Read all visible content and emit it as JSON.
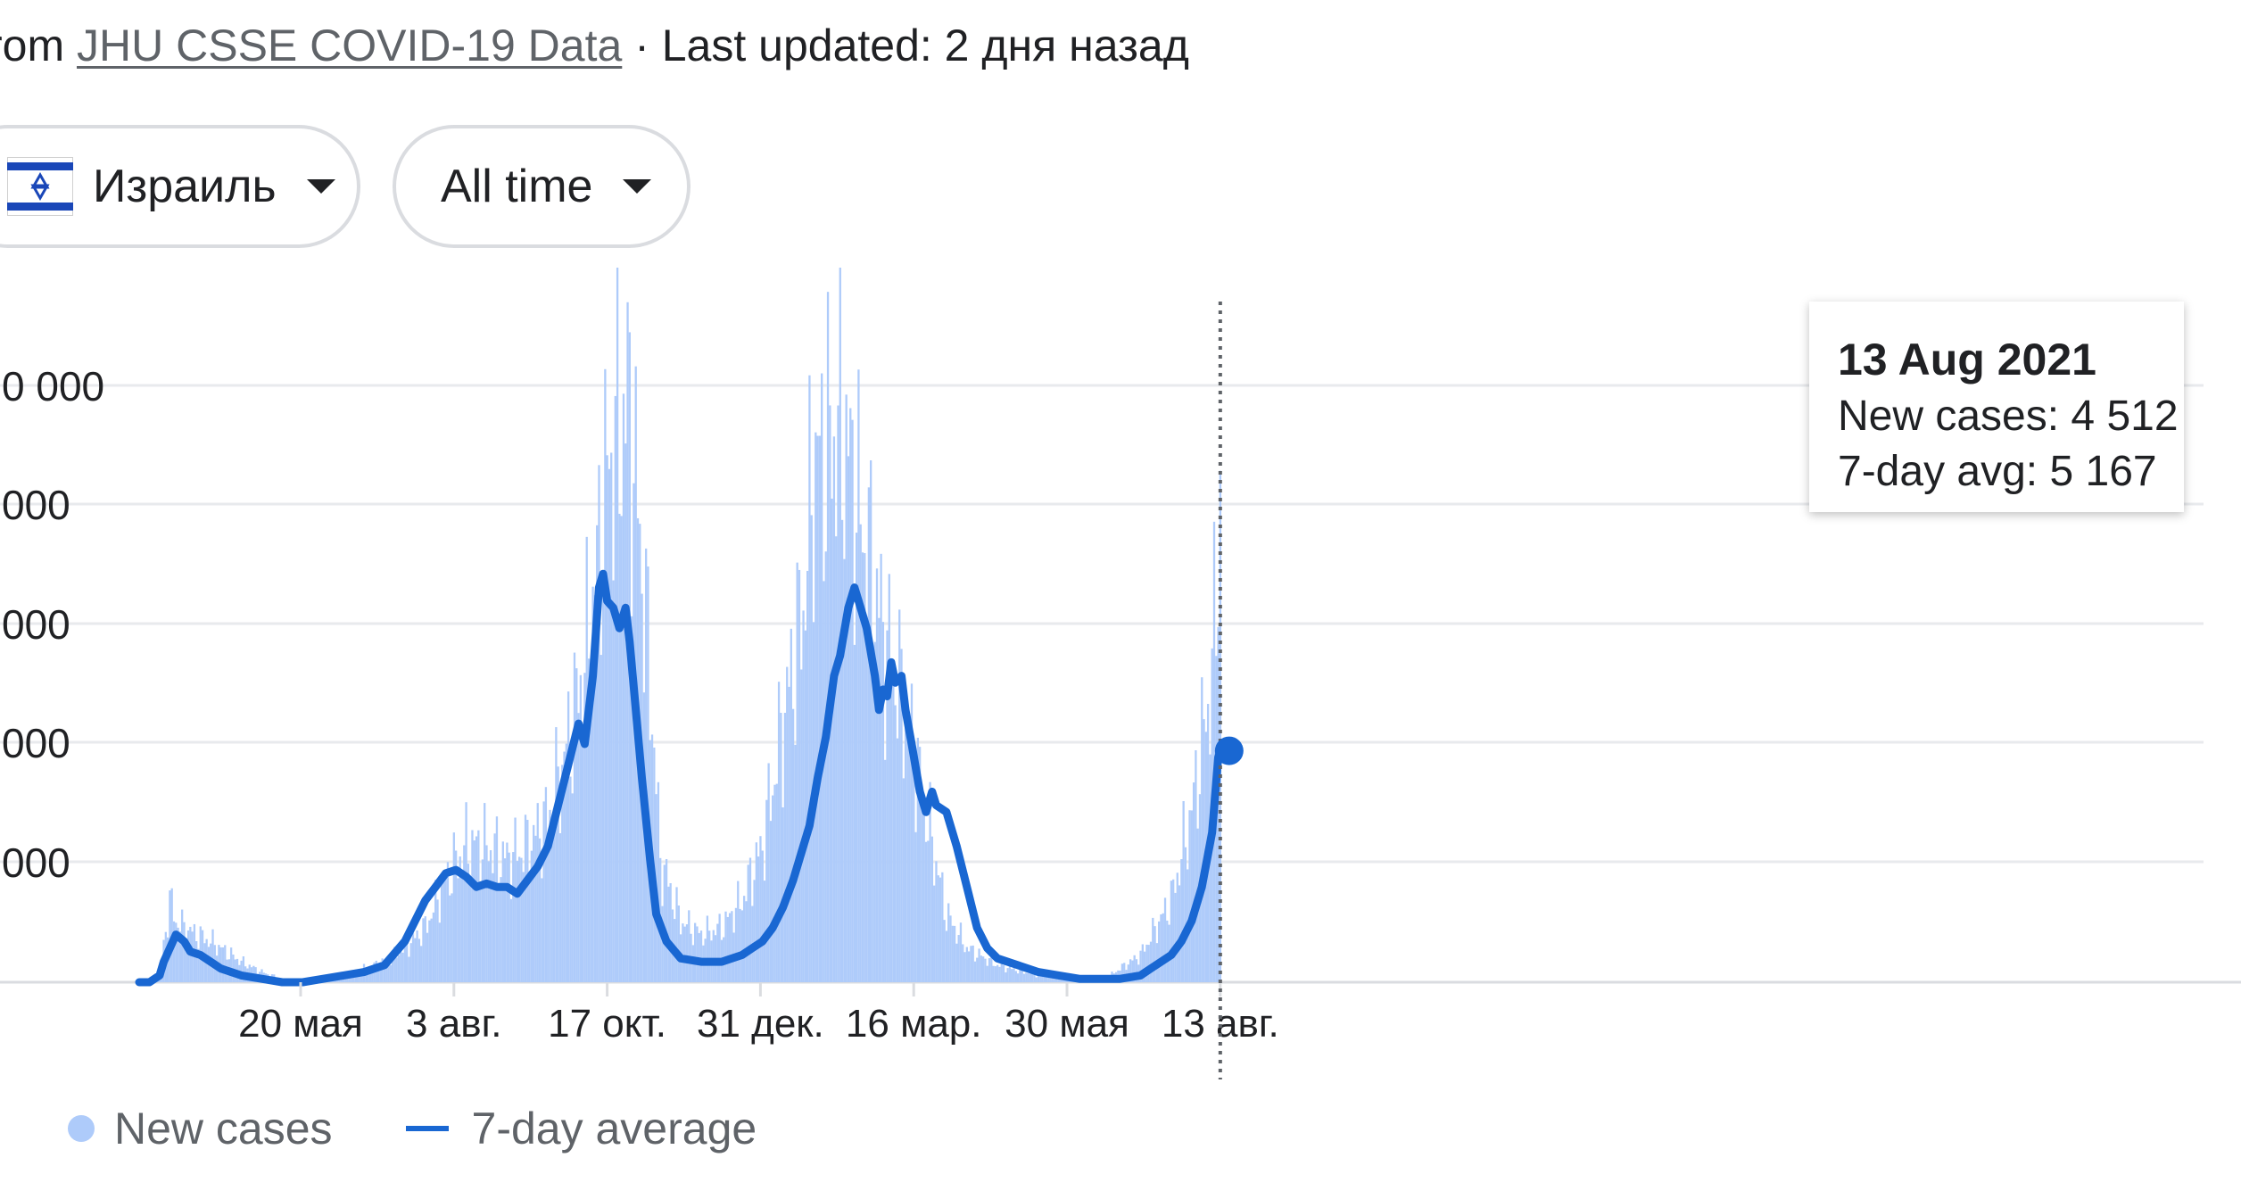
{
  "source": {
    "prefix": "rom",
    "link_text": "JHU CSSE COVID-19 Data",
    "suffix": "· Last updated: 2 дня назад"
  },
  "filters": {
    "country": "Израиль",
    "country_icon": "israel-flag-icon",
    "range": "All time",
    "dropdown_icon": "caret-down-icon"
  },
  "tooltip": {
    "date": "13 Aug 2021",
    "new_cases": "New cases: 4 512",
    "avg": "7-day avg: 5 167"
  },
  "legend": {
    "new_cases": "New cases",
    "avg": "7-day average"
  },
  "colors": {
    "bars": "#aecbfa",
    "line": "#1967d2",
    "grid": "#e8eaed",
    "axis": "#dadce0",
    "text": "#202124"
  },
  "chart_data": {
    "type": "bar",
    "y_tick_labels": [
      "0 000",
      "000",
      "000",
      "000",
      "000"
    ],
    "y_ticks_clipped": true,
    "x_tick_labels": [
      "20 мая",
      "3 авг.",
      "17 окт.",
      "31 дек.",
      "16 мар.",
      "30 мая",
      "13 авг."
    ],
    "x_ticks_days_since_first_point": [
      79,
      154,
      229,
      304,
      379,
      454,
      529
    ],
    "series": [
      {
        "name": "New cases",
        "style": "bars",
        "values_fraction_of_max": [
          [
            0,
            0
          ],
          [
            10,
            0.01
          ],
          [
            15,
            0.12
          ],
          [
            18,
            0.09
          ],
          [
            22,
            0.08
          ],
          [
            28,
            0.07
          ],
          [
            35,
            0.06
          ],
          [
            50,
            0.03
          ],
          [
            60,
            0.015
          ],
          [
            70,
            0.005
          ],
          [
            80,
            0.0
          ],
          [
            100,
            0.005
          ],
          [
            110,
            0.02
          ],
          [
            120,
            0.03
          ],
          [
            130,
            0.05
          ],
          [
            140,
            0.08
          ],
          [
            150,
            0.15
          ],
          [
            160,
            0.2
          ],
          [
            170,
            0.2
          ],
          [
            180,
            0.18
          ],
          [
            190,
            0.2
          ],
          [
            200,
            0.24
          ],
          [
            210,
            0.35
          ],
          [
            220,
            0.5
          ],
          [
            230,
            0.77
          ],
          [
            240,
            0.85
          ],
          [
            250,
            0.45
          ],
          [
            255,
            0.18
          ],
          [
            265,
            0.09
          ],
          [
            275,
            0.07
          ],
          [
            285,
            0.08
          ],
          [
            295,
            0.12
          ],
          [
            305,
            0.2
          ],
          [
            315,
            0.38
          ],
          [
            325,
            0.55
          ],
          [
            330,
            0.75
          ],
          [
            340,
            0.8
          ],
          [
            345,
            0.8
          ],
          [
            355,
            0.65
          ],
          [
            365,
            0.5
          ],
          [
            375,
            0.4
          ],
          [
            385,
            0.25
          ],
          [
            395,
            0.1
          ],
          [
            405,
            0.05
          ],
          [
            420,
            0.025
          ],
          [
            440,
            0.01
          ],
          [
            460,
            0.005
          ],
          [
            475,
            0.01
          ],
          [
            490,
            0.04
          ],
          [
            505,
            0.12
          ],
          [
            515,
            0.25
          ],
          [
            525,
            0.45
          ],
          [
            529,
            0.7
          ]
        ],
        "note": "relative heights; y-axis tick labels are partially clipped in the screenshot"
      },
      {
        "name": "7-day average",
        "style": "line",
        "values_fraction_of_max": [
          [
            0,
            0.0
          ],
          [
            5,
            0.0
          ],
          [
            10,
            0.01
          ],
          [
            12,
            0.03
          ],
          [
            15,
            0.05
          ],
          [
            18,
            0.07
          ],
          [
            20,
            0.065
          ],
          [
            22,
            0.06
          ],
          [
            25,
            0.045
          ],
          [
            30,
            0.04
          ],
          [
            35,
            0.03
          ],
          [
            40,
            0.02
          ],
          [
            50,
            0.01
          ],
          [
            60,
            0.005
          ],
          [
            70,
            0.0
          ],
          [
            80,
            0.0
          ],
          [
            90,
            0.005
          ],
          [
            100,
            0.01
          ],
          [
            110,
            0.015
          ],
          [
            115,
            0.02
          ],
          [
            120,
            0.025
          ],
          [
            130,
            0.06
          ],
          [
            140,
            0.12
          ],
          [
            145,
            0.14
          ],
          [
            150,
            0.16
          ],
          [
            155,
            0.165
          ],
          [
            160,
            0.155
          ],
          [
            165,
            0.14
          ],
          [
            170,
            0.145
          ],
          [
            175,
            0.14
          ],
          [
            180,
            0.14
          ],
          [
            185,
            0.13
          ],
          [
            190,
            0.15
          ],
          [
            195,
            0.17
          ],
          [
            200,
            0.2
          ],
          [
            205,
            0.26
          ],
          [
            210,
            0.32
          ],
          [
            215,
            0.38
          ],
          [
            218,
            0.35
          ],
          [
            222,
            0.45
          ],
          [
            225,
            0.58
          ],
          [
            227,
            0.6
          ],
          [
            229,
            0.56
          ],
          [
            232,
            0.55
          ],
          [
            235,
            0.52
          ],
          [
            238,
            0.55
          ],
          [
            240,
            0.5
          ],
          [
            243,
            0.4
          ],
          [
            246,
            0.3
          ],
          [
            250,
            0.18
          ],
          [
            253,
            0.1
          ],
          [
            258,
            0.06
          ],
          [
            265,
            0.035
          ],
          [
            275,
            0.03
          ],
          [
            285,
            0.03
          ],
          [
            295,
            0.04
          ],
          [
            300,
            0.05
          ],
          [
            305,
            0.06
          ],
          [
            310,
            0.08
          ],
          [
            315,
            0.11
          ],
          [
            320,
            0.15
          ],
          [
            325,
            0.2
          ],
          [
            328,
            0.23
          ],
          [
            332,
            0.3
          ],
          [
            336,
            0.36
          ],
          [
            340,
            0.45
          ],
          [
            343,
            0.48
          ],
          [
            347,
            0.55
          ],
          [
            350,
            0.58
          ],
          [
            352,
            0.56
          ],
          [
            356,
            0.52
          ],
          [
            360,
            0.45
          ],
          [
            362,
            0.4
          ],
          [
            364,
            0.43
          ],
          [
            366,
            0.42
          ],
          [
            368,
            0.47
          ],
          [
            370,
            0.44
          ],
          [
            373,
            0.45
          ],
          [
            375,
            0.4
          ],
          [
            378,
            0.35
          ],
          [
            382,
            0.28
          ],
          [
            385,
            0.25
          ],
          [
            388,
            0.28
          ],
          [
            390,
            0.26
          ],
          [
            395,
            0.25
          ],
          [
            400,
            0.2
          ],
          [
            405,
            0.14
          ],
          [
            410,
            0.08
          ],
          [
            415,
            0.05
          ],
          [
            420,
            0.035
          ],
          [
            430,
            0.025
          ],
          [
            440,
            0.015
          ],
          [
            450,
            0.01
          ],
          [
            460,
            0.005
          ],
          [
            470,
            0.005
          ],
          [
            480,
            0.005
          ],
          [
            490,
            0.01
          ],
          [
            495,
            0.02
          ],
          [
            500,
            0.03
          ],
          [
            505,
            0.04
          ],
          [
            510,
            0.06
          ],
          [
            515,
            0.09
          ],
          [
            520,
            0.14
          ],
          [
            525,
            0.22
          ],
          [
            528,
            0.33
          ],
          [
            529,
            0.34
          ]
        ]
      }
    ],
    "highlight": {
      "label": "13 Aug 2021",
      "new_cases": 4512,
      "avg": 5167
    },
    "grid": true,
    "legend_position": "bottom-left"
  }
}
